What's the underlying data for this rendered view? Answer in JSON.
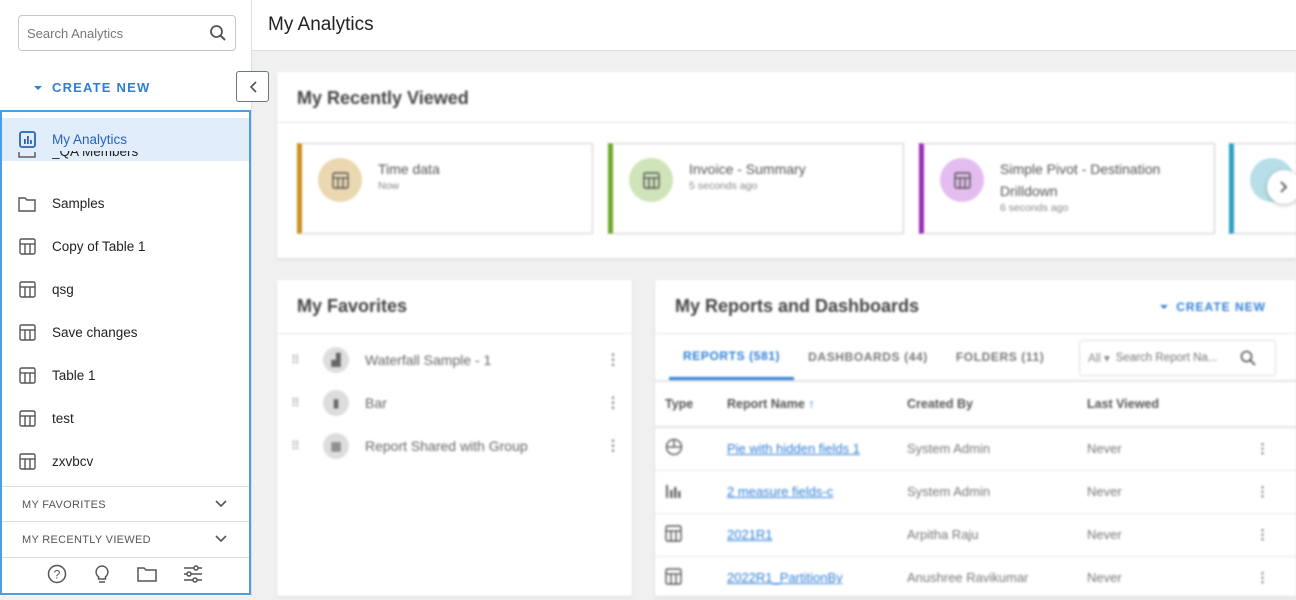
{
  "sidebar": {
    "search_placeholder": "Search Analytics",
    "create_new": "CREATE NEW",
    "items": [
      {
        "label": "My Analytics",
        "icon": "analytics-icon"
      },
      {
        "label": "_QA Members",
        "icon": "folder-icon"
      },
      {
        "label": "Samples",
        "icon": "folder-icon"
      },
      {
        "label": "Copy of Table 1",
        "icon": "table-icon"
      },
      {
        "label": "qsg",
        "icon": "table-icon"
      },
      {
        "label": "Save changes",
        "icon": "table-icon"
      },
      {
        "label": "Table 1",
        "icon": "table-icon"
      },
      {
        "label": "test",
        "icon": "table-icon"
      },
      {
        "label": "zxvbcv",
        "icon": "table-icon"
      }
    ],
    "my_favorites": "MY FAVORITES",
    "my_recently_viewed": "MY RECENTLY VIEWED",
    "bottom_icons": [
      "help-icon",
      "lightbulb-icon",
      "folder-icon",
      "settings-sliders-icon"
    ]
  },
  "header": {
    "title": "My Analytics"
  },
  "recently_viewed": {
    "title": "My Recently Viewed",
    "tiles": [
      {
        "name": "Time data",
        "time": "Now",
        "color": "#c8901a",
        "bg": "#ecd8b0"
      },
      {
        "name": "Invoice - Summary",
        "time": "5 seconds ago",
        "color": "#6aa82a",
        "bg": "#cfe4b8"
      },
      {
        "name": "Simple Pivot - Destination Drilldown",
        "time": "6 seconds ago",
        "color": "#9b2bb5",
        "bg": "#e4bdf0"
      }
    ]
  },
  "favorites": {
    "title": "My Favorites",
    "items": [
      "Waterfall Sample - 1",
      "Bar",
      "Report Shared with Group"
    ]
  },
  "reports": {
    "title": "My Reports and Dashboards",
    "create_new": "CREATE NEW",
    "tabs": [
      "REPORTS (581)",
      "DASHBOARDS (44)",
      "FOLDERS (11)"
    ],
    "filter": "All",
    "search_placeholder": "Search Report Na...",
    "columns": [
      "Type",
      "Report Name",
      "Created By",
      "Last Viewed"
    ],
    "rows": [
      {
        "type": "pie-icon",
        "name": "Pie with hidden fields 1",
        "created_by": "System Admin",
        "last_viewed": "Never"
      },
      {
        "type": "bar-chart-icon",
        "name": "2 measure fields-c",
        "created_by": "System Admin",
        "last_viewed": "Never"
      },
      {
        "type": "table-icon",
        "name": "2021R1",
        "created_by": "Arpitha Raju",
        "last_viewed": "Never"
      },
      {
        "type": "table-icon",
        "name": "2022R1_PartitionBy",
        "created_by": "Anushree Ravikumar",
        "last_viewed": "Never"
      }
    ]
  }
}
